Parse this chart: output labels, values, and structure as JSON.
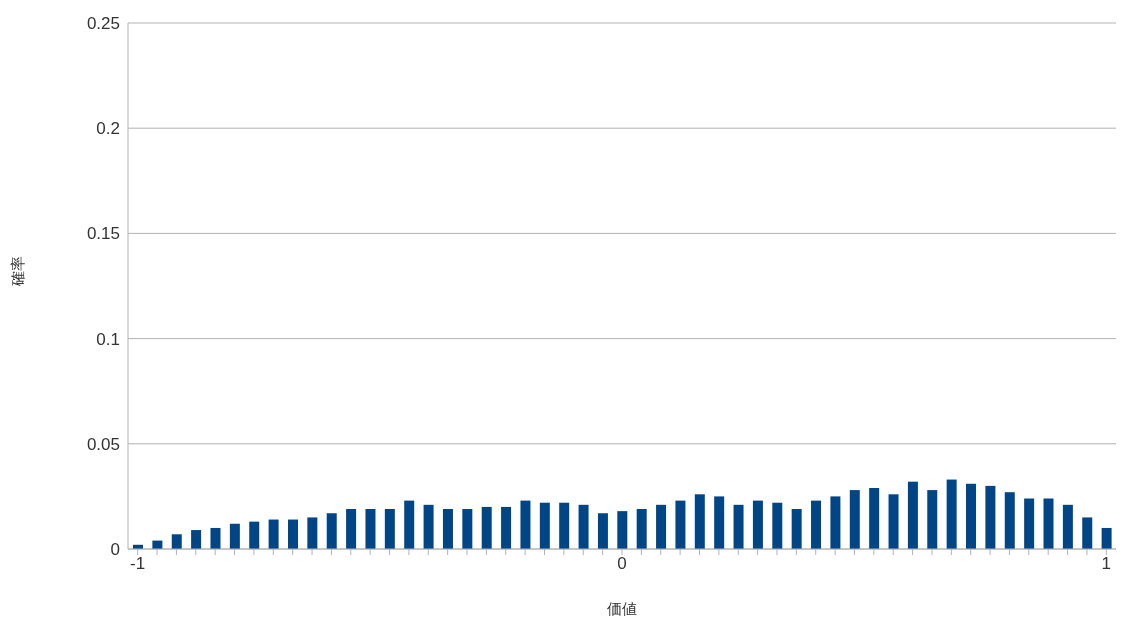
{
  "chart_data": {
    "type": "bar",
    "xlabel": "価値",
    "ylabel": "確率",
    "categories": [
      "-1",
      null,
      null,
      null,
      null,
      null,
      null,
      null,
      null,
      null,
      null,
      null,
      null,
      null,
      null,
      null,
      null,
      null,
      null,
      null,
      null,
      null,
      null,
      null,
      null,
      "0",
      null,
      null,
      null,
      null,
      null,
      null,
      null,
      null,
      null,
      null,
      null,
      null,
      null,
      null,
      null,
      null,
      null,
      null,
      null,
      null,
      null,
      null,
      null,
      null,
      "1"
    ],
    "values": [
      0.002,
      0.004,
      0.007,
      0.009,
      0.01,
      0.012,
      0.013,
      0.014,
      0.014,
      0.015,
      0.017,
      0.019,
      0.019,
      0.019,
      0.023,
      0.021,
      0.019,
      0.019,
      0.02,
      0.02,
      0.023,
      0.022,
      0.022,
      0.021,
      0.017,
      0.018,
      0.019,
      0.021,
      0.023,
      0.026,
      0.025,
      0.021,
      0.023,
      0.022,
      0.019,
      0.023,
      0.025,
      0.028,
      0.029,
      0.026,
      0.032,
      0.028,
      0.033,
      0.031,
      0.03,
      0.027,
      0.024,
      0.024,
      0.021,
      0.015,
      0.01
    ],
    "color": "#004586",
    "ylim": [
      0,
      0.25
    ],
    "yticks": [
      0,
      0.05,
      0.1,
      0.15,
      0.2,
      0.25
    ],
    "grid": "y"
  }
}
